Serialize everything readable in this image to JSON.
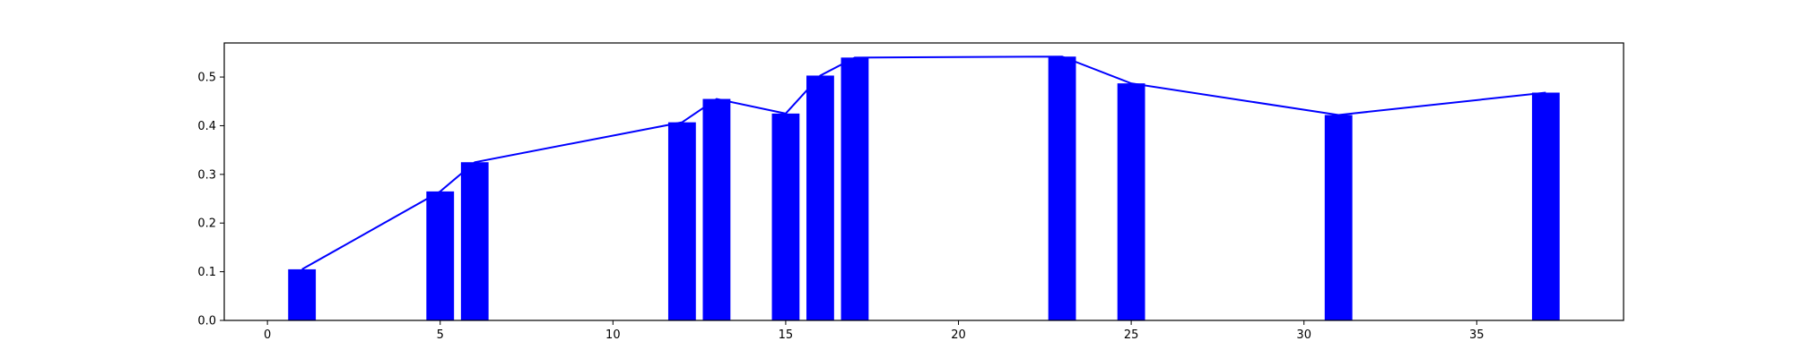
{
  "chart_data": {
    "type": "bar",
    "x": [
      1,
      5,
      6,
      12,
      13,
      15,
      16,
      17,
      23,
      25,
      31,
      37
    ],
    "values": [
      0.105,
      0.265,
      0.325,
      0.407,
      0.455,
      0.425,
      0.503,
      0.54,
      0.542,
      0.487,
      0.422,
      0.468
    ],
    "overlay_line": true,
    "xlim": [
      -1.25,
      39.25
    ],
    "ylim": [
      0,
      0.57
    ],
    "xticks": [
      0,
      5,
      10,
      15,
      20,
      25,
      30,
      35
    ],
    "yticks": [
      0.0,
      0.1,
      0.2,
      0.3,
      0.4,
      0.5
    ],
    "xtick_labels": [
      "0",
      "5",
      "10",
      "15",
      "20",
      "25",
      "30",
      "35"
    ],
    "ytick_labels": [
      "0.0",
      "0.1",
      "0.2",
      "0.3",
      "0.4",
      "0.5"
    ],
    "bar_width": 0.8,
    "grid": false,
    "color": "#0000ff"
  }
}
